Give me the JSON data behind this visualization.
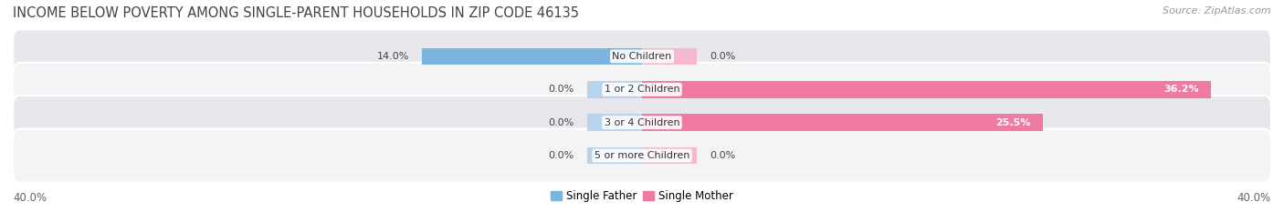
{
  "title": "INCOME BELOW POVERTY AMONG SINGLE-PARENT HOUSEHOLDS IN ZIP CODE 46135",
  "source": "Source: ZipAtlas.com",
  "categories": [
    "No Children",
    "1 or 2 Children",
    "3 or 4 Children",
    "5 or more Children"
  ],
  "single_father": [
    14.0,
    0.0,
    0.0,
    0.0
  ],
  "single_mother": [
    0.0,
    36.2,
    25.5,
    0.0
  ],
  "axis_max": 40.0,
  "father_color": "#7ab5e0",
  "mother_color": "#f07aa0",
  "father_color_light": "#b8d4ed",
  "mother_color_light": "#f5b8ce",
  "row_bg_color_odd": "#e8e8ec",
  "row_bg_color_even": "#f4f4f6",
  "title_fontsize": 10.5,
  "label_fontsize": 8.0,
  "tick_fontsize": 8.5,
  "source_fontsize": 8.0,
  "legend_fontsize": 8.5,
  "x_axis_label_left": "40.0%",
  "x_axis_label_right": "40.0%",
  "small_bar_size": 3.5
}
